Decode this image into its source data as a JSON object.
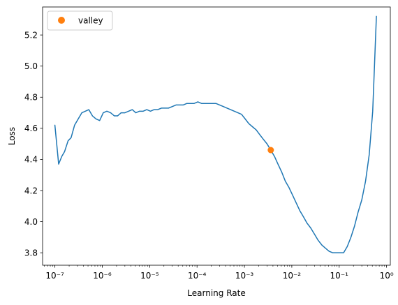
{
  "chart_data": {
    "type": "line",
    "title": "",
    "xlabel": "Learning Rate",
    "ylabel": "Loss",
    "xscale": "log",
    "xlim": [
      5.5e-08,
      1.2
    ],
    "ylim": [
      3.72,
      5.38
    ],
    "grid": false,
    "legend_position": "top-left",
    "x_ticks": [
      {
        "value": 1e-07,
        "label": "10⁻⁷"
      },
      {
        "value": 1e-06,
        "label": "10⁻⁶"
      },
      {
        "value": 1e-05,
        "label": "10⁻⁵"
      },
      {
        "value": 0.0001,
        "label": "10⁻⁴"
      },
      {
        "value": 0.001,
        "label": "10⁻³"
      },
      {
        "value": 0.01,
        "label": "10⁻²"
      },
      {
        "value": 0.1,
        "label": "10⁻¹"
      },
      {
        "value": 1,
        "label": "10⁰"
      }
    ],
    "y_ticks": [
      {
        "value": 3.8,
        "label": "3.8"
      },
      {
        "value": 4.0,
        "label": "4.0"
      },
      {
        "value": 4.2,
        "label": "4.2"
      },
      {
        "value": 4.4,
        "label": "4.4"
      },
      {
        "value": 4.6,
        "label": "4.6"
      },
      {
        "value": 4.8,
        "label": "4.8"
      },
      {
        "value": 5.0,
        "label": "5.0"
      },
      {
        "value": 5.2,
        "label": "5.2"
      }
    ],
    "series": [
      {
        "color": "#1f77b4",
        "points": [
          [
            1e-07,
            4.62
          ],
          [
            1.2e-07,
            4.37
          ],
          [
            1.4e-07,
            4.42
          ],
          [
            1.6e-07,
            4.45
          ],
          [
            1.9e-07,
            4.52
          ],
          [
            2.2e-07,
            4.54
          ],
          [
            2.6e-07,
            4.62
          ],
          [
            3.1e-07,
            4.66
          ],
          [
            3.7e-07,
            4.7
          ],
          [
            4.4e-07,
            4.71
          ],
          [
            5.2e-07,
            4.72
          ],
          [
            6.2e-07,
            4.68
          ],
          [
            7.4e-07,
            4.66
          ],
          [
            8.8e-07,
            4.65
          ],
          [
            1.05e-06,
            4.7
          ],
          [
            1.25e-06,
            4.71
          ],
          [
            1.5e-06,
            4.7
          ],
          [
            1.8e-06,
            4.68
          ],
          [
            2.1e-06,
            4.68
          ],
          [
            2.5e-06,
            4.7
          ],
          [
            3e-06,
            4.7
          ],
          [
            3.6e-06,
            4.71
          ],
          [
            4.3e-06,
            4.72
          ],
          [
            5.1e-06,
            4.7
          ],
          [
            6.1e-06,
            4.71
          ],
          [
            7.3e-06,
            4.71
          ],
          [
            8.7e-06,
            4.72
          ],
          [
            1.04e-05,
            4.71
          ],
          [
            1.24e-05,
            4.72
          ],
          [
            1.48e-05,
            4.72
          ],
          [
            1.77e-05,
            4.73
          ],
          [
            2.1e-05,
            4.73
          ],
          [
            2.5e-05,
            4.73
          ],
          [
            3e-05,
            4.74
          ],
          [
            3.6e-05,
            4.75
          ],
          [
            4.3e-05,
            4.75
          ],
          [
            5.1e-05,
            4.75
          ],
          [
            6.1e-05,
            4.76
          ],
          [
            7.3e-05,
            4.76
          ],
          [
            8.7e-05,
            4.76
          ],
          [
            0.000104,
            4.77
          ],
          [
            0.000124,
            4.76
          ],
          [
            0.000148,
            4.76
          ],
          [
            0.000177,
            4.76
          ],
          [
            0.00021,
            4.76
          ],
          [
            0.00025,
            4.76
          ],
          [
            0.0003,
            4.75
          ],
          [
            0.00036,
            4.74
          ],
          [
            0.00043,
            4.73
          ],
          [
            0.00051,
            4.72
          ],
          [
            0.00061,
            4.71
          ],
          [
            0.00073,
            4.7
          ],
          [
            0.00087,
            4.69
          ],
          [
            0.00104,
            4.66
          ],
          [
            0.00124,
            4.63
          ],
          [
            0.00148,
            4.61
          ],
          [
            0.00177,
            4.59
          ],
          [
            0.0021,
            4.56
          ],
          [
            0.0025,
            4.53
          ],
          [
            0.003,
            4.5
          ],
          [
            0.0036,
            4.46
          ],
          [
            0.0043,
            4.42
          ],
          [
            0.0051,
            4.37
          ],
          [
            0.0061,
            4.32
          ],
          [
            0.0073,
            4.26
          ],
          [
            0.0087,
            4.22
          ],
          [
            0.0104,
            4.17
          ],
          [
            0.0124,
            4.12
          ],
          [
            0.0148,
            4.07
          ],
          [
            0.0177,
            4.03
          ],
          [
            0.021,
            3.99
          ],
          [
            0.025,
            3.96
          ],
          [
            0.03,
            3.92
          ],
          [
            0.036,
            3.88
          ],
          [
            0.043,
            3.85
          ],
          [
            0.051,
            3.83
          ],
          [
            0.061,
            3.81
          ],
          [
            0.073,
            3.8
          ],
          [
            0.087,
            3.8
          ],
          [
            0.104,
            3.8
          ],
          [
            0.124,
            3.8
          ],
          [
            0.148,
            3.84
          ],
          [
            0.177,
            3.9
          ],
          [
            0.21,
            3.97
          ],
          [
            0.25,
            4.06
          ],
          [
            0.3,
            4.14
          ],
          [
            0.36,
            4.26
          ],
          [
            0.43,
            4.43
          ],
          [
            0.51,
            4.71
          ],
          [
            0.61,
            5.32
          ]
        ]
      }
    ],
    "markers": [
      {
        "name": "valley",
        "x": 0.0036,
        "y": 4.46,
        "color": "#ff7f0e"
      }
    ]
  }
}
